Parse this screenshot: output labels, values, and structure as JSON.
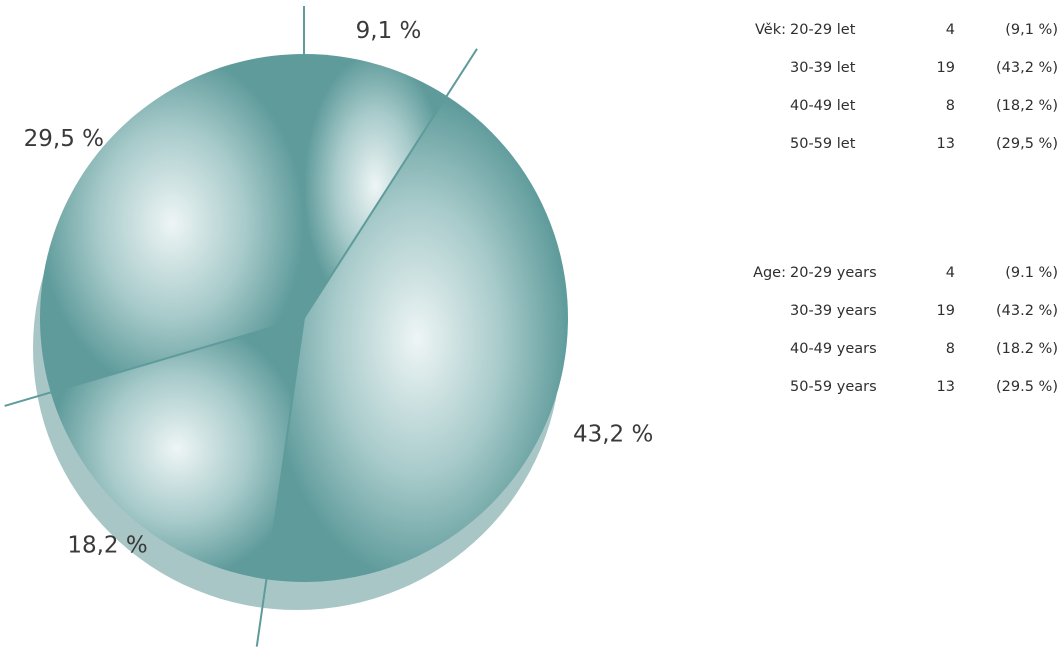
{
  "chart_data": {
    "type": "pie",
    "categories": [
      "20-29 let",
      "30-39 let",
      "40-49 let",
      "50-59 let"
    ],
    "values": [
      4,
      19,
      8,
      13
    ],
    "slice_labels": [
      "9,1 %",
      "43,2 %",
      "18,2 %",
      "29,5 %"
    ],
    "title": "",
    "colors": {
      "fill_center": "#eef5f5",
      "fill_edge": "#5f9b9b",
      "shadow": "#a8c6c6",
      "divider": "#5f9b9b"
    }
  },
  "legend": {
    "czech": {
      "prefix": "Věk:",
      "rows": [
        {
          "category": "20-29 let",
          "count": "4",
          "percent": "(9,1 %)"
        },
        {
          "category": "30-39 let",
          "count": "19",
          "percent": "(43,2 %)"
        },
        {
          "category": "40-49 let",
          "count": "8",
          "percent": "(18,2 %)"
        },
        {
          "category": "50-59 let",
          "count": "13",
          "percent": "(29,5 %)"
        }
      ]
    },
    "english": {
      "prefix": "Age:",
      "rows": [
        {
          "category": "20-29 years",
          "count": "4",
          "percent": "(9.1 %)"
        },
        {
          "category": "30-39 years",
          "count": "19",
          "percent": "(43.2 %)"
        },
        {
          "category": "40-49 years",
          "count": "8",
          "percent": "(18.2 %)"
        },
        {
          "category": "50-59 years",
          "count": "13",
          "percent": "(29.5 %)"
        }
      ]
    }
  }
}
